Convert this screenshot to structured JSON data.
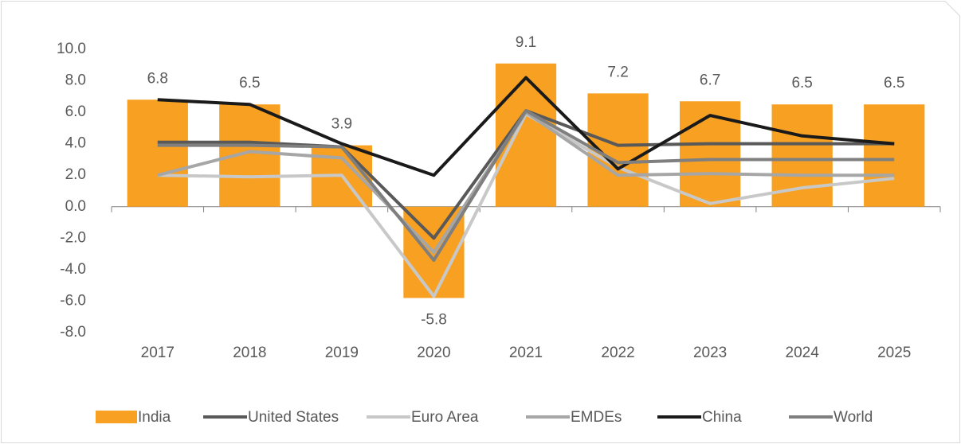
{
  "chart_data": {
    "type": "bar_line",
    "categories": [
      "2017",
      "2018",
      "2019",
      "2020",
      "2021",
      "2022",
      "2023",
      "2024",
      "2025"
    ],
    "series": [
      {
        "name": "India",
        "type": "bar",
        "color": "#f7a021",
        "values": [
          6.8,
          6.5,
          3.9,
          -5.8,
          9.1,
          7.2,
          6.7,
          6.5,
          6.5
        ],
        "value_labels": [
          "6.8",
          "6.5",
          "3.9",
          "-5.8",
          "9.1",
          "7.2",
          "6.7",
          "6.5",
          "6.5"
        ]
      },
      {
        "name": "United States",
        "type": "line",
        "color": "#595959",
        "values": [
          4.1,
          4.1,
          3.8,
          -2.0,
          6.1,
          3.9,
          4.0,
          4.0,
          4.0
        ]
      },
      {
        "name": "Euro Area",
        "type": "line",
        "color": "#c8c8c8",
        "values": [
          2.0,
          1.9,
          2.0,
          -5.7,
          5.9,
          2.5,
          0.2,
          1.2,
          1.8
        ]
      },
      {
        "name": "EMDEs",
        "type": "line",
        "color": "#a6a6a6",
        "values": [
          2.0,
          3.5,
          3.1,
          -2.9,
          6.0,
          2.0,
          2.1,
          2.0,
          2.0
        ]
      },
      {
        "name": "China",
        "type": "line",
        "color": "#1a1a1a",
        "values": [
          6.8,
          6.5,
          4.0,
          2.0,
          8.2,
          2.4,
          5.8,
          4.5,
          4.0
        ]
      },
      {
        "name": "World",
        "type": "line",
        "color": "#7f7f7f",
        "values": [
          3.9,
          3.9,
          3.8,
          -3.4,
          6.1,
          2.8,
          3.0,
          3.0,
          3.0
        ]
      }
    ],
    "ylim": [
      -8,
      10
    ],
    "yticks": [
      {
        "value": -8,
        "label": "-8.0"
      },
      {
        "value": -6,
        "label": "-6.0"
      },
      {
        "value": -4,
        "label": "-4.0"
      },
      {
        "value": -2,
        "label": "-2.0"
      },
      {
        "value": 0,
        "label": "0.0"
      },
      {
        "value": 2,
        "label": "2.0"
      },
      {
        "value": 4,
        "label": "4.0"
      },
      {
        "value": 6,
        "label": "6.0"
      },
      {
        "value": 8,
        "label": "8.0"
      },
      {
        "value": 10,
        "label": "10.0"
      }
    ],
    "legend": "bottom"
  }
}
